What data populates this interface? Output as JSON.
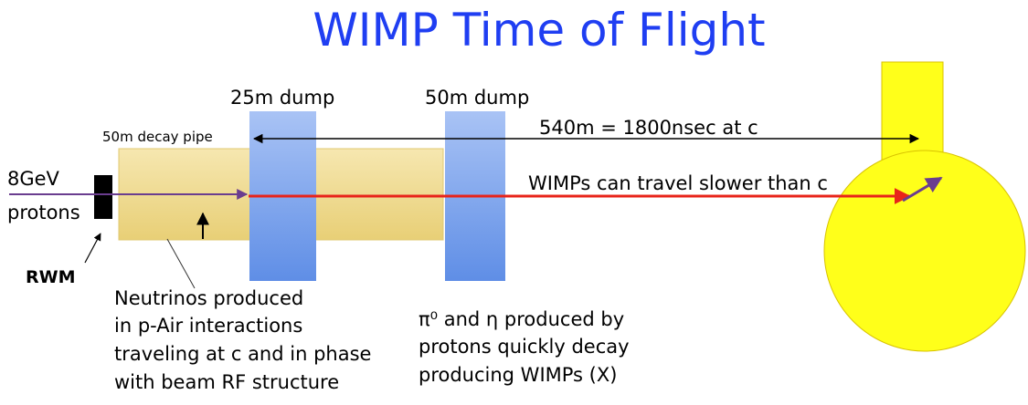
{
  "title": "WIMP Time of Flight",
  "labels": {
    "dump25": "25m dump",
    "dump50": "50m dump",
    "pipe": "50m decay pipe",
    "distance": "540m = 1800nsec at c",
    "beam_energy": "8GeV",
    "beam_particle": "protons",
    "rwm": "RWM",
    "wimps": "WIMPs can travel slower than c"
  },
  "notes": {
    "neutrinos": [
      "Neutrinos produced",
      "in p-Air interactions",
      "traveling at c and in phase",
      "with beam RF structure"
    ],
    "pions": [
      "π⁰ and η produced by",
      "protons quickly decay",
      "producing WIMPs (X)"
    ]
  }
}
